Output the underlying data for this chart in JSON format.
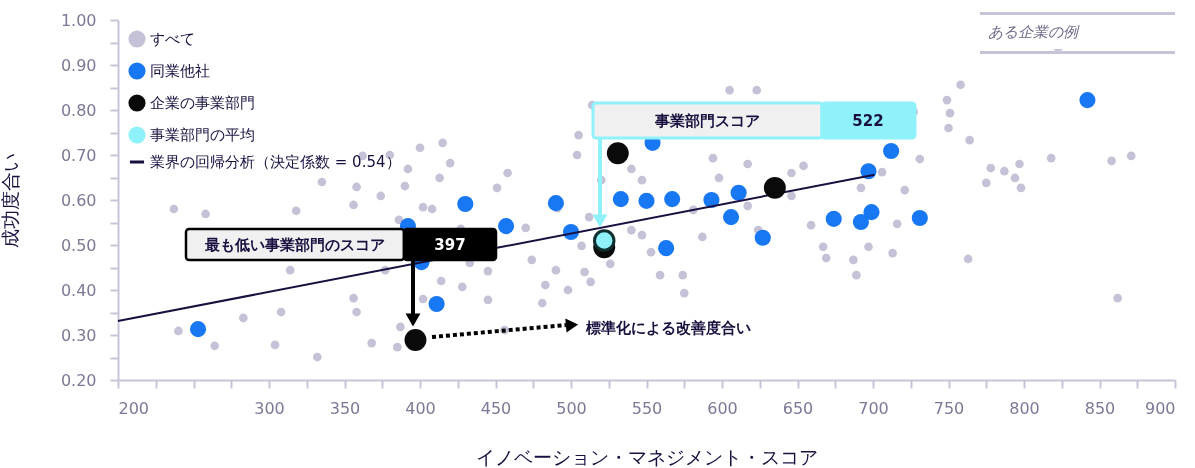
{
  "chart_data": {
    "type": "scatter",
    "xlabel": "イノベーション・マネジメント・スコア",
    "ylabel": "成功度合い",
    "xlim": [
      200,
      900
    ],
    "ylim": [
      0.2,
      1.0
    ],
    "xticks": [
      200,
      {
        "value": 225,
        "label": null
      },
      300,
      {
        "value": 250,
        "label": null
      },
      {
        "value": 275,
        "label": null
      },
      {
        "value": 325,
        "label": null
      },
      350,
      {
        "value": 375,
        "label": null
      },
      400,
      {
        "value": 425,
        "label": null
      },
      450,
      {
        "value": 475,
        "label": null
      },
      500,
      {
        "value": 525,
        "label": null
      },
      550,
      {
        "value": 575,
        "label": null
      },
      600,
      {
        "value": 625,
        "label": null
      },
      650,
      {
        "value": 675,
        "label": null
      },
      700,
      {
        "value": 725,
        "label": null
      },
      750,
      {
        "value": 775,
        "label": null
      },
      800,
      {
        "value": 825,
        "label": null
      },
      850,
      {
        "value": 875,
        "label": null
      },
      900
    ],
    "yticks": [
      {
        "value": 0.2,
        "label": "0.20"
      },
      {
        "value": 0.25,
        "label": null
      },
      {
        "value": 0.3,
        "label": "0.30"
      },
      {
        "value": 0.35,
        "label": null
      },
      {
        "value": 0.4,
        "label": "0.40"
      },
      {
        "value": 0.45,
        "label": null
      },
      {
        "value": 0.5,
        "label": "0.50"
      },
      {
        "value": 0.55,
        "label": null
      },
      {
        "value": 0.6,
        "label": "0.60"
      },
      {
        "value": 0.65,
        "label": null
      },
      {
        "value": 0.7,
        "label": "0.70"
      },
      {
        "value": 0.75,
        "label": null
      },
      {
        "value": 0.8,
        "label": "0.80"
      },
      {
        "value": 0.85,
        "label": null
      },
      {
        "value": 0.9,
        "label": "0.90"
      },
      {
        "value": 0.95,
        "label": null
      },
      {
        "value": 1.0,
        "label": "1.00"
      }
    ],
    "legend": "top left",
    "marker": "circle",
    "line_style": "solid",
    "series": [
      {
        "name": "すべて",
        "color": "#c5c1d6",
        "x": [
          237,
          258,
          240,
          264,
          283,
          304,
          308,
          314,
          318,
          335,
          332,
          358,
          356,
          368,
          377,
          385,
          387,
          358,
          356,
          362,
          374,
          386,
          380,
          390,
          402,
          392,
          413,
          408,
          420,
          415,
          400,
          402,
          414,
          428,
          433,
          427,
          445,
          445,
          456,
          451,
          458,
          470,
          474,
          483,
          481,
          491,
          490,
          498,
          504,
          505,
          507,
          509,
          513,
          514,
          512,
          520,
          526,
          540,
          540,
          547,
          547,
          553,
          559,
          574,
          575,
          581,
          587,
          594,
          598,
          605,
          623,
          617,
          617,
          624,
          646,
          646,
          654,
          659,
          667,
          669,
          687,
          689,
          692,
          697,
          706,
          713,
          716,
          721,
          727,
          731,
          749,
          751,
          750,
          758,
          764,
          763,
          775,
          778,
          787,
          794,
          797,
          798,
          818,
          858,
          871,
          862
        ],
        "values": [
          0.58,
          0.569,
          0.309,
          0.276,
          0.338,
          0.278,
          0.351,
          0.444,
          0.576,
          0.64,
          0.251,
          0.351,
          0.382,
          0.282,
          0.444,
          0.273,
          0.318,
          0.629,
          0.589,
          0.698,
          0.609,
          0.556,
          0.7,
          0.631,
          0.584,
          0.669,
          0.649,
          0.58,
          0.682,
          0.727,
          0.716,
          0.38,
          0.42,
          0.407,
          0.46,
          0.536,
          0.378,
          0.442,
          0.311,
          0.627,
          0.66,
          0.538,
          0.467,
          0.411,
          0.371,
          0.582,
          0.444,
          0.4,
          0.7,
          0.744,
          0.498,
          0.44,
          0.418,
          0.811,
          0.562,
          0.644,
          0.458,
          0.669,
          0.533,
          0.522,
          0.644,
          0.484,
          0.433,
          0.433,
          0.393,
          0.578,
          0.518,
          0.693,
          0.649,
          0.844,
          0.844,
          0.68,
          0.587,
          0.533,
          0.609,
          0.66,
          0.676,
          0.544,
          0.496,
          0.471,
          0.467,
          0.433,
          0.627,
          0.496,
          0.662,
          0.482,
          0.547,
          0.622,
          0.796,
          0.691,
          0.822,
          0.793,
          0.76,
          0.856,
          0.733,
          0.469,
          0.638,
          0.671,
          0.664,
          0.649,
          0.68,
          0.627,
          0.693,
          0.687,
          0.698,
          0.382
        ]
      },
      {
        "name": "同業他社",
        "color": "#1877f2",
        "x": [
          253,
          392,
          401,
          411,
          430,
          457,
          490,
          500,
          533,
          550,
          567,
          563,
          554,
          593,
          611,
          606,
          627,
          674,
          692,
          699,
          697,
          712,
          731,
          842
        ],
        "values": [
          0.313,
          0.542,
          0.462,
          0.369,
          0.591,
          0.542,
          0.593,
          0.529,
          0.602,
          0.598,
          0.602,
          0.493,
          0.727,
          0.6,
          0.616,
          0.562,
          0.516,
          0.558,
          0.551,
          0.573,
          0.664,
          0.709,
          0.56,
          0.822
        ]
      },
      {
        "name": "企業の事業部門",
        "color": "#0a0a0a",
        "x": [
          397,
          531,
          635,
          522
        ],
        "values": [
          0.289,
          0.704,
          0.627,
          0.495
        ]
      },
      {
        "name": "事業部門の平均",
        "color": "#8ff2fb",
        "x": [
          522
        ],
        "values": [
          0.51
        ]
      },
      {
        "name": "業界の回帰分析（決定係数 = 0.54）",
        "type": "line",
        "marker": "none",
        "color": "#1a1040",
        "x": [
          200,
          701
        ],
        "values": [
          0.331,
          0.656
        ]
      }
    ],
    "annotations": [
      "最も低い事業部門のスコア",
      "397",
      "事業部門スコア",
      "522",
      "標準化による改善度合い",
      "ある企業の例"
    ]
  }
}
